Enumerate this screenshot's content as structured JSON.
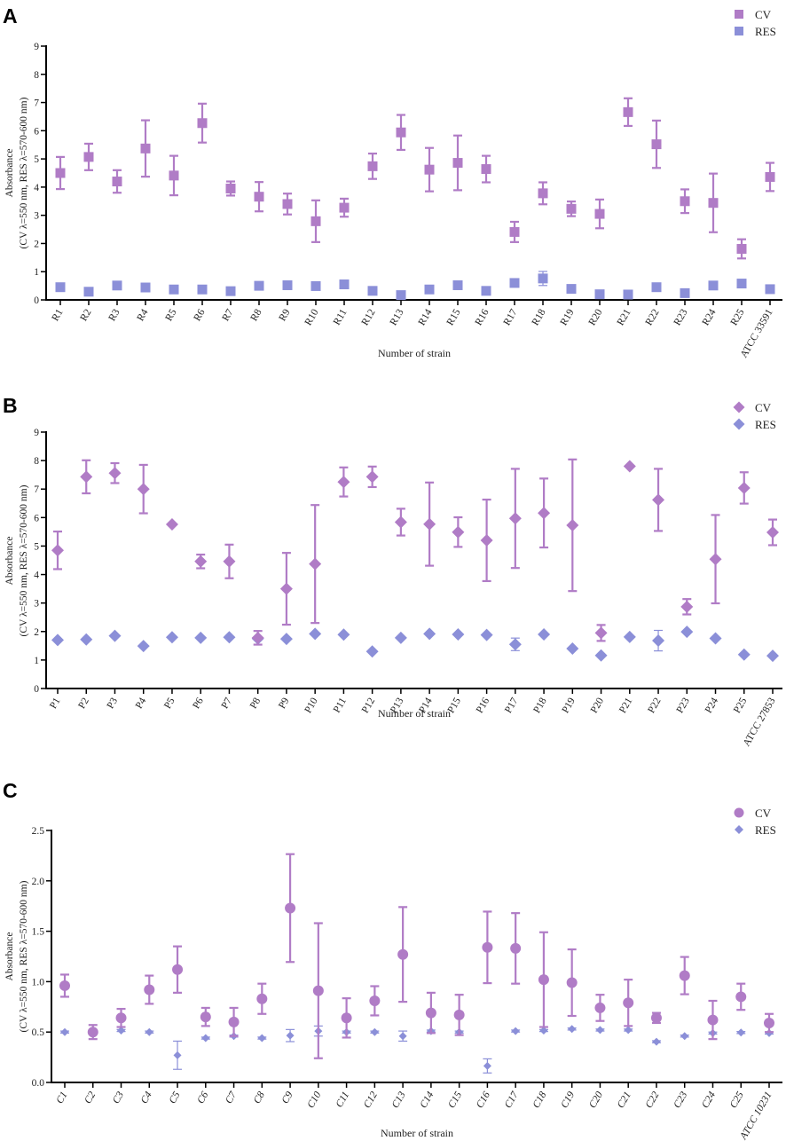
{
  "colors": {
    "cv": "#B07CC6",
    "res": "#8B8FD8",
    "axis": "#000000"
  },
  "chart_data": [
    {
      "panel": "A",
      "type": "scatter",
      "error_bars": "sd",
      "xlabel": "Number of strain",
      "ylabel": [
        "Absorbance",
        "(CV λ=550 nm, RES λ=570-600 nm)"
      ],
      "ylim": [
        0,
        9
      ],
      "yticks": [
        "0",
        "1",
        "2",
        "3",
        "4",
        "5",
        "6",
        "7",
        "8",
        "9"
      ],
      "legend_position": "top-right",
      "categories": [
        "R1",
        "R2",
        "R3",
        "R4",
        "R5",
        "R6",
        "R7",
        "R8",
        "R9",
        "R10",
        "R11",
        "R12",
        "R13",
        "R14",
        "R15",
        "R16",
        "R17",
        "R18",
        "R19",
        "R20",
        "R21",
        "R22",
        "R23",
        "R24",
        "R25",
        "ATCC 33591"
      ],
      "series": [
        {
          "name": "CV",
          "marker": "square",
          "values": [
            4.5,
            5.07,
            4.2,
            5.37,
            4.41,
            6.27,
            3.95,
            3.66,
            3.4,
            2.79,
            3.27,
            4.74,
            5.94,
            4.62,
            4.86,
            4.64,
            2.41,
            3.78,
            3.23,
            3.05,
            6.66,
            5.52,
            3.5,
            3.44,
            1.81,
            4.36
          ],
          "sd": [
            0.57,
            0.47,
            0.4,
            1.0,
            0.7,
            0.69,
            0.25,
            0.52,
            0.37,
            0.74,
            0.32,
            0.45,
            0.62,
            0.77,
            0.97,
            0.47,
            0.36,
            0.39,
            0.26,
            0.51,
            0.49,
            0.84,
            0.42,
            1.04,
            0.34,
            0.5
          ]
        },
        {
          "name": "RES",
          "marker": "square",
          "values": [
            0.45,
            0.29,
            0.51,
            0.44,
            0.37,
            0.37,
            0.31,
            0.5,
            0.52,
            0.49,
            0.55,
            0.32,
            0.17,
            0.37,
            0.52,
            0.32,
            0.6,
            0.76,
            0.39,
            0.2,
            0.19,
            0.45,
            0.24,
            0.51,
            0.58,
            0.38
          ],
          "sd": [
            0.03,
            0.03,
            0.03,
            0.03,
            0.03,
            0.03,
            0.03,
            0.03,
            0.03,
            0.03,
            0.03,
            0.03,
            0.03,
            0.03,
            0.03,
            0.03,
            0.03,
            0.25,
            0.03,
            0.03,
            0.03,
            0.03,
            0.03,
            0.03,
            0.03,
            0.03
          ]
        }
      ]
    },
    {
      "panel": "B",
      "type": "scatter",
      "error_bars": "sd",
      "xlabel": "Number of strain",
      "ylabel": [
        "Absorbance",
        "(CV λ=550 nm, RES λ=570-600 nm)"
      ],
      "ylim": [
        0,
        9
      ],
      "yticks": [
        "0",
        "1",
        "2",
        "3",
        "4",
        "5",
        "6",
        "7",
        "8",
        "9"
      ],
      "legend_position": "top-right",
      "categories": [
        "P1",
        "P2",
        "P3",
        "P4",
        "P5",
        "P6",
        "P7",
        "P8",
        "P9",
        "P10",
        "P11",
        "P12",
        "P13",
        "P14",
        "P15",
        "P16",
        "P17",
        "P18",
        "P19",
        "P20",
        "P21",
        "P22",
        "P23",
        "P24",
        "P25",
        "ATCC 27853"
      ],
      "series": [
        {
          "name": "CV",
          "marker": "diamond",
          "values": [
            4.85,
            7.43,
            7.56,
            7.0,
            5.76,
            4.46,
            4.46,
            1.78,
            3.5,
            4.37,
            7.25,
            7.43,
            5.84,
            5.77,
            5.49,
            5.2,
            5.97,
            6.16,
            5.73,
            1.95,
            7.8,
            6.62,
            2.87,
            4.54,
            7.04,
            5.48
          ],
          "sd": [
            0.66,
            0.58,
            0.35,
            0.85,
            0,
            0.24,
            0.59,
            0.24,
            1.26,
            2.07,
            0.51,
            0.36,
            0.47,
            1.46,
            0.52,
            1.43,
            1.74,
            1.21,
            2.31,
            0.28,
            0,
            1.09,
            0.27,
            1.55,
            0.55,
            0.45
          ]
        },
        {
          "name": "RES",
          "marker": "diamond",
          "values": [
            1.7,
            1.72,
            1.85,
            1.49,
            1.8,
            1.78,
            1.8,
            1.75,
            1.74,
            1.92,
            1.89,
            1.3,
            1.78,
            1.92,
            1.9,
            1.88,
            1.55,
            1.9,
            1.4,
            1.16,
            1.81,
            1.68,
            1.99,
            1.76,
            1.19,
            1.15
          ],
          "sd": [
            0.03,
            0.03,
            0.03,
            0.03,
            0.03,
            0.03,
            0.03,
            0.03,
            0.03,
            0.03,
            0.03,
            0.03,
            0.03,
            0.03,
            0.03,
            0.03,
            0.22,
            0.03,
            0.03,
            0.03,
            0.03,
            0.36,
            0.03,
            0.03,
            0.03,
            0.03
          ]
        }
      ]
    },
    {
      "panel": "C",
      "type": "scatter",
      "error_bars": "sd",
      "xlabel": "Number of strain",
      "ylabel": [
        "Absorbance",
        "(CV λ=550 nm, RES λ=570-600 nm)"
      ],
      "ylim": [
        0,
        2.5
      ],
      "yticks": [
        "0.0",
        "0.5",
        "1.0",
        "1.5",
        "2.0",
        "2.5"
      ],
      "legend_position": "top-right",
      "categories": [
        "C1",
        "C2",
        "C3",
        "C4",
        "C5",
        "C6",
        "C7",
        "C8",
        "C9",
        "C10",
        "C11",
        "C12",
        "C13",
        "C14",
        "C15",
        "C16",
        "C17",
        "C18",
        "C19",
        "C20",
        "C21",
        "C22",
        "C23",
        "C24",
        "C25",
        "ATCC 10231"
      ],
      "series": [
        {
          "name": "CV",
          "marker": "circle",
          "values": [
            0.96,
            0.5,
            0.64,
            0.92,
            1.12,
            0.65,
            0.6,
            0.83,
            1.73,
            0.91,
            0.64,
            0.81,
            1.27,
            0.69,
            0.67,
            1.34,
            1.33,
            1.02,
            0.99,
            0.74,
            0.79,
            0.64,
            1.06,
            0.62,
            0.85,
            0.59
          ],
          "sd": [
            0.11,
            0.07,
            0.09,
            0.14,
            0.23,
            0.09,
            0.14,
            0.15,
            0.535,
            0.67,
            0.195,
            0.145,
            0.47,
            0.2,
            0.2,
            0.355,
            0.35,
            0.47,
            0.33,
            0.13,
            0.23,
            0.05,
            0.185,
            0.19,
            0.13,
            0.09
          ]
        },
        {
          "name": "RES",
          "marker": "diamond",
          "values": [
            0.5,
            0.5,
            0.515,
            0.5,
            0.27,
            0.44,
            0.46,
            0.44,
            0.465,
            0.51,
            0.5,
            0.5,
            0.46,
            0.51,
            0.5,
            0.164,
            0.51,
            0.515,
            0.53,
            0.52,
            0.52,
            0.404,
            0.46,
            0.49,
            0.495,
            0.49
          ],
          "sd": [
            0.01,
            0.01,
            0.01,
            0.01,
            0.14,
            0.01,
            0.01,
            0.01,
            0.06,
            0.05,
            0.01,
            0.01,
            0.05,
            0.01,
            0.01,
            0.07,
            0.01,
            0.01,
            0.01,
            0.01,
            0.01,
            0.01,
            0.01,
            0.01,
            0.01,
            0.01
          ]
        }
      ]
    }
  ]
}
